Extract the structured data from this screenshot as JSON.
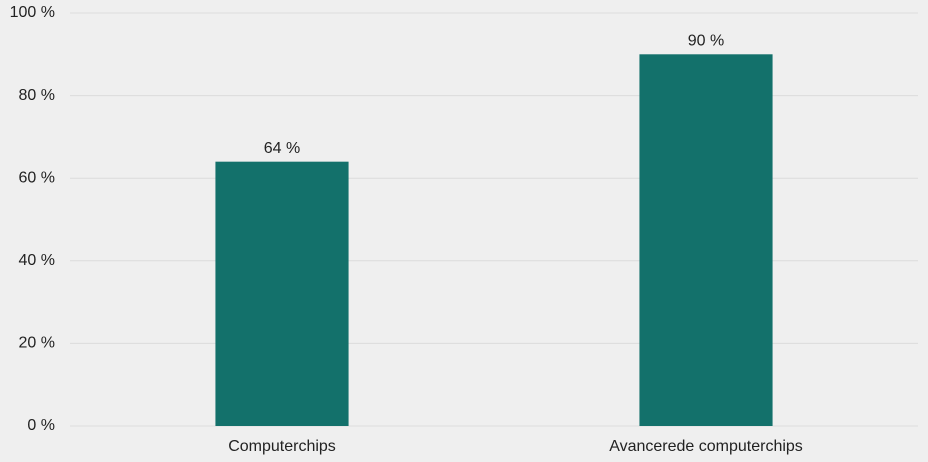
{
  "chart_data": {
    "type": "bar",
    "categories": [
      "Computerchips",
      "Avancerede computerchips"
    ],
    "values": [
      64,
      90
    ],
    "value_labels": [
      "64 %",
      "90 %"
    ],
    "color": "#13716b",
    "ylim": [
      0,
      100
    ],
    "yticks": [
      {
        "value": 0,
        "label": "0 %"
      },
      {
        "value": 20,
        "label": "20 %"
      },
      {
        "value": 40,
        "label": "40 %"
      },
      {
        "value": 60,
        "label": "60 %"
      },
      {
        "value": 80,
        "label": "80 %"
      },
      {
        "value": 100,
        "label": "100 %"
      }
    ],
    "grid": true
  }
}
